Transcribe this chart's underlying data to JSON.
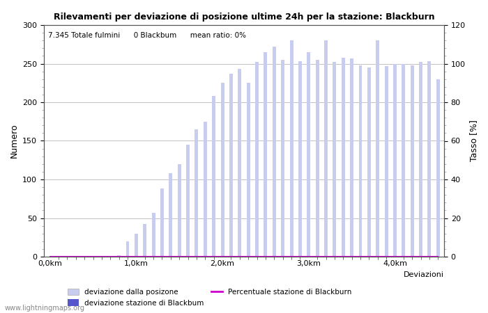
{
  "title": "Rilevamenti per deviazione di posizione ultime 24h per la stazione: Blackburn",
  "subtitle": "7.345 Totale fulmini      0 Blackbum      mean ratio: 0%",
  "xlabel": "Deviazioni",
  "ylabel_left": "Numero",
  "ylabel_right": "Tasso [%]",
  "xtick_labels": [
    "0,0km",
    "1,0km",
    "2,0km",
    "3,0km",
    "4,0km"
  ],
  "xtick_positions": [
    0,
    10,
    20,
    30,
    40
  ],
  "ylim_left": [
    0,
    300
  ],
  "ylim_right": [
    0,
    120
  ],
  "yticks_left": [
    0,
    50,
    100,
    150,
    200,
    250,
    300
  ],
  "yticks_right": [
    0,
    20,
    40,
    60,
    80,
    100,
    120
  ],
  "bar_color_light": "#c8ccee",
  "bar_color_dark": "#5555cc",
  "line_color": "#cc00cc",
  "watermark": "www.lightningmaps.org",
  "bar_values": [
    0,
    0,
    0,
    0,
    0,
    0,
    0,
    0,
    2,
    20,
    30,
    42,
    57,
    88,
    108,
    120,
    145,
    165,
    175,
    208,
    225,
    237,
    243,
    225,
    252,
    265,
    272,
    255,
    280,
    253,
    265,
    255,
    280,
    252,
    258,
    257,
    248,
    245,
    280,
    247,
    250,
    250,
    248,
    252,
    253,
    230
  ],
  "bar_values_dark": [
    0,
    0,
    0,
    0,
    0,
    0,
    0,
    0,
    0,
    0,
    0,
    0,
    0,
    0,
    0,
    0,
    0,
    0,
    0,
    0,
    0,
    0,
    0,
    0,
    0,
    0,
    0,
    0,
    0,
    0,
    0,
    0,
    0,
    0,
    0,
    0,
    0,
    0,
    0,
    0,
    0,
    0,
    0,
    0,
    0,
    0
  ],
  "n_bars": 46,
  "background_color": "#ffffff",
  "grid_color": "#aaaaaa",
  "figsize": [
    7.0,
    4.5
  ],
  "dpi": 100
}
